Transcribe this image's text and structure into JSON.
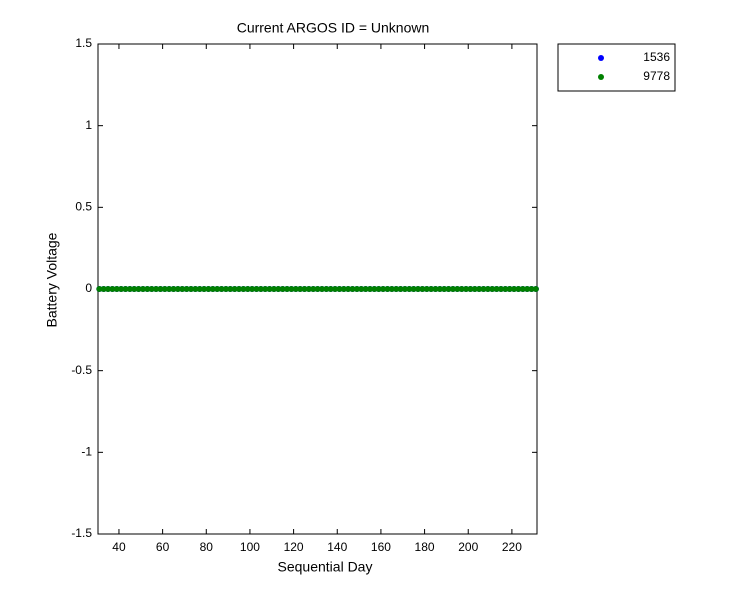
{
  "chart_data": {
    "type": "scatter",
    "title": "Current ARGOS ID = Unknown",
    "x_label": "Sequential Day",
    "y_label": "Battery Voltage",
    "x": [
      31,
      33,
      35,
      37,
      39,
      41,
      43,
      45,
      47,
      49,
      51,
      53,
      55,
      57,
      59,
      61,
      63,
      65,
      67,
      69,
      71,
      73,
      75,
      77,
      79,
      81,
      83,
      85,
      87,
      89,
      91,
      93,
      95,
      97,
      99,
      101,
      103,
      105,
      107,
      109,
      111,
      113,
      115,
      117,
      119,
      121,
      123,
      125,
      127,
      129,
      131,
      133,
      135,
      137,
      139,
      141,
      143,
      145,
      147,
      149,
      151,
      153,
      155,
      157,
      159,
      161,
      163,
      165,
      167,
      169,
      171,
      173,
      175,
      177,
      179,
      181,
      183,
      185,
      187,
      189,
      191,
      193,
      195,
      197,
      199,
      201,
      203,
      205,
      207,
      209,
      211,
      213,
      215,
      217,
      219,
      221,
      223,
      225,
      227,
      229,
      231
    ],
    "series": [
      {
        "name": "1536",
        "color": "#0000ff",
        "values": [
          0,
          0,
          0,
          0,
          0,
          0,
          0,
          0,
          0,
          0,
          0,
          0,
          0,
          0,
          0,
          0,
          0,
          0,
          0,
          0,
          0,
          0,
          0,
          0,
          0,
          0,
          0,
          0,
          0,
          0,
          0,
          0,
          0,
          0,
          0,
          0,
          0,
          0,
          0,
          0,
          0,
          0,
          0,
          0,
          0,
          0,
          0,
          0,
          0,
          0,
          0,
          0,
          0,
          0,
          0,
          0,
          0,
          0,
          0,
          0,
          0,
          0,
          0,
          0,
          0,
          0,
          0,
          0,
          0,
          0,
          0,
          0,
          0,
          0,
          0,
          0,
          0,
          0,
          0,
          0,
          0,
          0,
          0,
          0,
          0,
          0,
          0,
          0,
          0,
          0,
          0,
          0,
          0,
          0,
          0,
          0,
          0,
          0,
          0,
          0,
          0
        ]
      },
      {
        "name": "9778",
        "color": "#008000",
        "values": [
          0,
          0,
          0,
          0,
          0,
          0,
          0,
          0,
          0,
          0,
          0,
          0,
          0,
          0,
          0,
          0,
          0,
          0,
          0,
          0,
          0,
          0,
          0,
          0,
          0,
          0,
          0,
          0,
          0,
          0,
          0,
          0,
          0,
          0,
          0,
          0,
          0,
          0,
          0,
          0,
          0,
          0,
          0,
          0,
          0,
          0,
          0,
          0,
          0,
          0,
          0,
          0,
          0,
          0,
          0,
          0,
          0,
          0,
          0,
          0,
          0,
          0,
          0,
          0,
          0,
          0,
          0,
          0,
          0,
          0,
          0,
          0,
          0,
          0,
          0,
          0,
          0,
          0,
          0,
          0,
          0,
          0,
          0,
          0,
          0,
          0,
          0,
          0,
          0,
          0,
          0,
          0,
          0,
          0,
          0,
          0,
          0,
          0,
          0,
          0,
          0
        ]
      }
    ],
    "xlim": [
      30.4,
      231.5
    ],
    "xticks": [
      40,
      60,
      80,
      100,
      120,
      140,
      160,
      180,
      200,
      220
    ],
    "ylim": [
      -1.5,
      1.5
    ],
    "yticks": [
      -1.5,
      -1,
      -0.5,
      0,
      0.5,
      1,
      1.5
    ]
  }
}
